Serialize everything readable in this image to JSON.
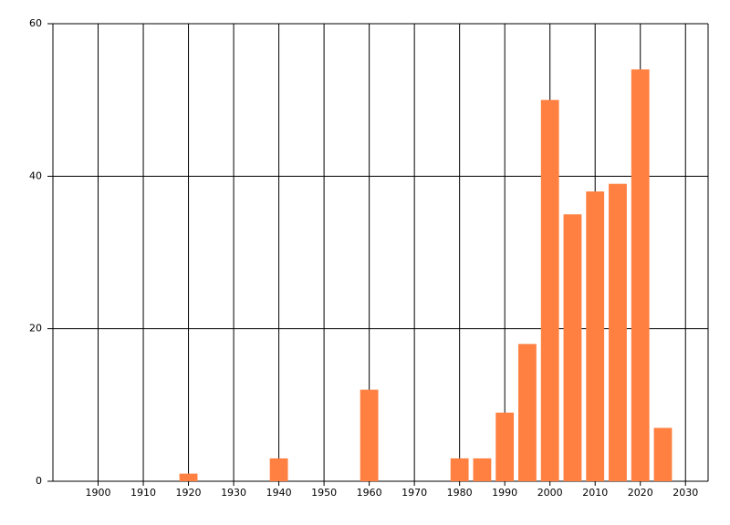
{
  "chart_data": {
    "type": "bar",
    "x": [
      1920,
      1940,
      1960,
      1980,
      1985,
      1990,
      1995,
      2000,
      2005,
      2010,
      2015,
      2020,
      2025
    ],
    "values": [
      1,
      3,
      12,
      3,
      3,
      9,
      18,
      50,
      35,
      38,
      39,
      54,
      7
    ],
    "color": "#ff8040",
    "xlim": [
      1890,
      2035
    ],
    "xticks": [
      1900,
      1910,
      1920,
      1930,
      1940,
      1950,
      1960,
      1970,
      1980,
      1990,
      2000,
      2010,
      2020,
      2030
    ],
    "ylim": [
      0,
      60
    ],
    "yticks": [
      0,
      20,
      40,
      60
    ],
    "grid": true
  }
}
